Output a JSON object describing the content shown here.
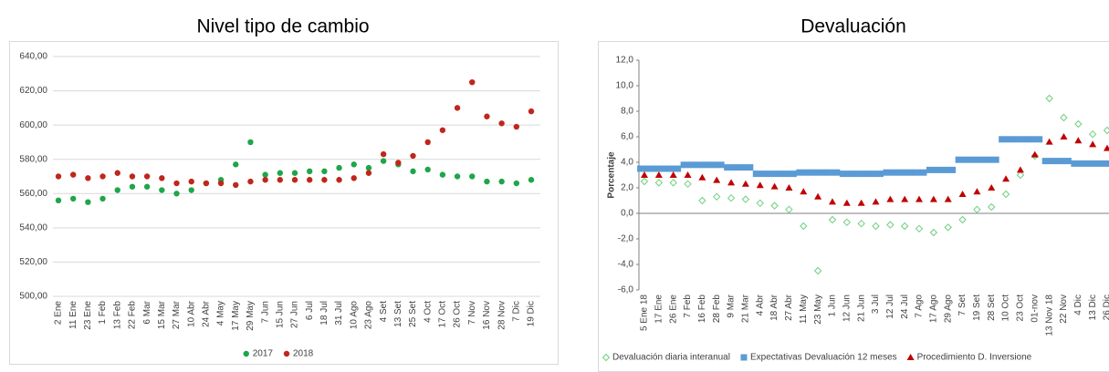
{
  "chart_data": [
    {
      "type": "dot",
      "title": "Nivel tipo de cambio",
      "categories": [
        "2 Ene",
        "11 Ene",
        "23 Ene",
        "1 Feb",
        "13 Feb",
        "22 Feb",
        "6 Mar",
        "15 Mar",
        "27 Mar",
        "10 Abr",
        "24 Abr",
        "4 May",
        "17 May",
        "29 May",
        "7 Jun",
        "15 Jun",
        "27 Jun",
        "6 Jul",
        "18 Jul",
        "31 Jul",
        "10 Ago",
        "23 Ago",
        "4 Set",
        "13 Set",
        "25 Set",
        "4 Oct",
        "17 Oct",
        "26 Oct",
        "7 Nov",
        "16 Nov",
        "28 Nov",
        "7 Dic",
        "19 Dic"
      ],
      "series": [
        {
          "name": "2017",
          "color": "#1ea64a",
          "marker": "circle",
          "values": [
            556,
            557,
            555,
            557,
            562,
            564,
            564,
            562,
            560,
            562,
            566,
            568,
            577,
            590,
            571,
            572,
            572,
            573,
            573,
            575,
            577,
            575,
            579,
            577,
            573,
            574,
            571,
            570,
            570,
            567,
            567,
            566,
            568
          ]
        },
        {
          "name": "2018",
          "color": "#c0261c",
          "marker": "circle",
          "values": [
            570,
            571,
            569,
            570,
            572,
            570,
            570,
            569,
            566,
            567,
            566,
            566,
            565,
            567,
            568,
            568,
            568,
            568,
            568,
            568,
            569,
            572,
            583,
            578,
            582,
            590,
            597,
            610,
            625,
            605,
            601,
            599,
            608
          ]
        }
      ],
      "ylim": [
        500,
        640
      ],
      "yticks": [
        {
          "value": 500,
          "label": "500,00"
        },
        {
          "value": 520,
          "label": "520,00"
        },
        {
          "value": 540,
          "label": "540,00"
        },
        {
          "value": 560,
          "label": "560,00"
        },
        {
          "value": 580,
          "label": "580,00"
        },
        {
          "value": 600,
          "label": "600,00"
        },
        {
          "value": 620,
          "label": "620,00"
        },
        {
          "value": 640,
          "label": "640,00"
        }
      ],
      "grid": true,
      "legend": "bottom"
    },
    {
      "type": "dot",
      "title": "Devaluación",
      "ylabel": "Porcentaje",
      "categories": [
        "5 Ene 18",
        "17 Ene",
        "26 Ene",
        "7 Feb",
        "16 Feb",
        "28 Feb",
        "9 Mar",
        "21 Mar",
        "4 Abr",
        "18 Abr",
        "27 Abr",
        "11 May",
        "23 May",
        "1 Jun",
        "12 Jun",
        "21 Jun",
        "3 Jul",
        "12 Jul",
        "24 Jul",
        "7 Ago",
        "17 Ago",
        "29 Ago",
        "7 Set",
        "19 Set",
        "28 Set",
        "10 Oct",
        "23 Oct",
        "01-nov",
        "13 Nov 18",
        "22 Nov",
        "4 Dic",
        "13 Dic",
        "26 Dic"
      ],
      "series": [
        {
          "name": "Devaluación diaria interanual",
          "color": "#6fcf7f",
          "marker": "diamond",
          "values": [
            2.5,
            2.4,
            2.4,
            2.3,
            1.0,
            1.3,
            1.2,
            1.1,
            0.8,
            0.6,
            0.3,
            -1.0,
            -4.5,
            -0.5,
            -0.7,
            -0.8,
            -1.0,
            -0.9,
            -1.0,
            -1.2,
            -1.5,
            -1.1,
            -0.5,
            0.3,
            0.5,
            1.5,
            3.0,
            4.5,
            9.0,
            7.5,
            7.0,
            6.2,
            6.5
          ]
        },
        {
          "name": "Expectativas Devaluación 12 meses",
          "color": "#5b9bd5",
          "marker": "square",
          "values": [
            3.5,
            3.5,
            3.5,
            3.8,
            3.8,
            3.8,
            3.6,
            3.6,
            3.1,
            3.1,
            3.1,
            3.2,
            3.2,
            3.2,
            3.1,
            3.1,
            3.1,
            3.2,
            3.2,
            3.2,
            3.4,
            3.4,
            4.2,
            4.2,
            4.2,
            5.8,
            5.8,
            5.8,
            4.1,
            4.1,
            3.9,
            3.9,
            3.9
          ]
        },
        {
          "name": "Procedimiento D. Inversione",
          "color": "#c00000",
          "marker": "triangle",
          "values": [
            3.0,
            3.0,
            3.0,
            3.0,
            2.8,
            2.6,
            2.4,
            2.3,
            2.2,
            2.1,
            2.0,
            1.7,
            1.3,
            0.9,
            0.8,
            0.8,
            0.9,
            1.1,
            1.1,
            1.1,
            1.1,
            1.1,
            1.5,
            1.7,
            2.0,
            2.7,
            3.4,
            4.6,
            5.6,
            6.0,
            5.7,
            5.4,
            5.1
          ]
        }
      ],
      "ylim": [
        -6,
        12
      ],
      "yticks": [
        {
          "value": -6,
          "label": "-6,0"
        },
        {
          "value": -4,
          "label": "-4,0"
        },
        {
          "value": -2,
          "label": "-2,0"
        },
        {
          "value": 0,
          "label": "0,0"
        },
        {
          "value": 2,
          "label": "2,0"
        },
        {
          "value": 4,
          "label": "4,0"
        },
        {
          "value": 6,
          "label": "6,0"
        },
        {
          "value": 8,
          "label": "8,0"
        },
        {
          "value": 10,
          "label": "10,0"
        },
        {
          "value": 12,
          "label": "12,0"
        }
      ],
      "grid": false,
      "legend": "bottom"
    }
  ]
}
